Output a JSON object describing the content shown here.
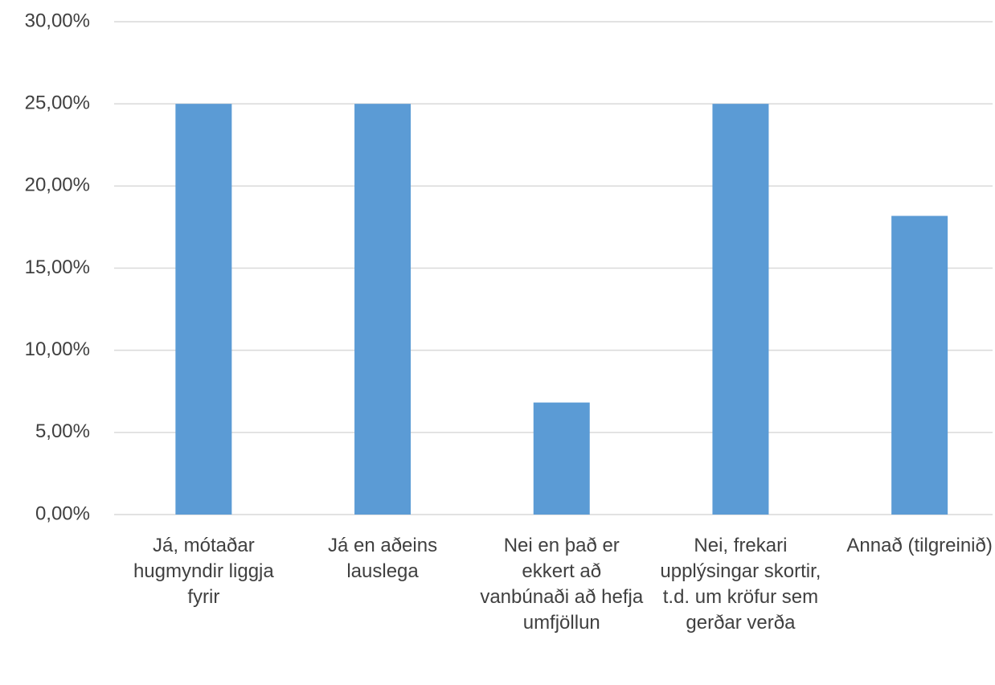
{
  "chart_data": {
    "type": "bar",
    "categories": [
      "Já, mótaðar hugmyndir liggja fyrir",
      "Já en aðeins lauslega",
      "Nei en það er ekkert að vanbúnaði að hefja umfjöllun",
      "Nei, frekari upplýsingar skortir, t.d. um kröfur sem gerðar verða",
      "Annað (tilgreinið)"
    ],
    "values": [
      25,
      25,
      6.82,
      25,
      18.18
    ],
    "color": "#5b9bd5",
    "ylim": [
      0,
      30
    ],
    "yticks": [
      {
        "value": 0,
        "label": "0,00%"
      },
      {
        "value": 5,
        "label": "5,00%"
      },
      {
        "value": 10,
        "label": "10,00%"
      },
      {
        "value": 15,
        "label": "15,00%"
      },
      {
        "value": 20,
        "label": "20,00%"
      },
      {
        "value": 25,
        "label": "25,00%"
      },
      {
        "value": 30,
        "label": "30,00%"
      }
    ],
    "grid": true
  }
}
